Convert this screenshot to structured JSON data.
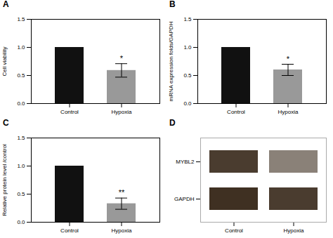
{
  "chart_data": [
    {
      "type": "bar",
      "title": "A",
      "categories": [
        "Control",
        "Hypoxia"
      ],
      "values": [
        1.0,
        0.59
      ],
      "errors": [
        0.0,
        0.12
      ],
      "colors": [
        "#111111",
        "#999999"
      ],
      "ylabel": "Cell viability",
      "ylim": [
        0,
        1.5
      ],
      "yticks": [
        {
          "value": 0,
          "label": "0.0"
        },
        0.5,
        {
          "value": 1,
          "label": "1.0"
        },
        1.5
      ],
      "annotations": [
        {
          "x": "Hypoxia",
          "text": "*"
        }
      ]
    },
    {
      "type": "bar",
      "title": "B",
      "categories": [
        "Control",
        "Hypoxia"
      ],
      "values": [
        1.0,
        0.6
      ],
      "errors": [
        0.0,
        0.1
      ],
      "colors": [
        "#111111",
        "#999999"
      ],
      "ylabel": "mRNA expression folds/GAPDH",
      "ylim": [
        0,
        1.5
      ],
      "yticks": [
        {
          "value": 0,
          "label": "0.0"
        },
        0.5,
        {
          "value": 1,
          "label": "1.0"
        },
        1.5
      ],
      "annotations": [
        {
          "x": "Hypoxia",
          "text": "*"
        }
      ]
    },
    {
      "type": "bar",
      "title": "C",
      "categories": [
        "Control",
        "Hypoxia"
      ],
      "values": [
        1.0,
        0.33
      ],
      "errors": [
        0.0,
        0.1
      ],
      "colors": [
        "#111111",
        "#999999"
      ],
      "ylabel": "Relative protein level /control",
      "ylim": [
        0,
        1.5
      ],
      "yticks": [
        {
          "value": 0,
          "label": "0.0"
        },
        0.5,
        {
          "value": 1,
          "label": "1.0"
        },
        1.5
      ],
      "annotations": [
        {
          "x": "Hypoxia",
          "text": "**"
        }
      ]
    },
    {
      "type": "heatmap",
      "title": "D",
      "categories": [
        "Control",
        "Hypoxia"
      ],
      "color": "#2a1a0a",
      "series": [
        {
          "name": "MYBL2",
          "values": [
            0.85,
            0.55
          ]
        },
        {
          "name": "GAPDH",
          "values": [
            0.9,
            0.85
          ]
        }
      ]
    }
  ]
}
